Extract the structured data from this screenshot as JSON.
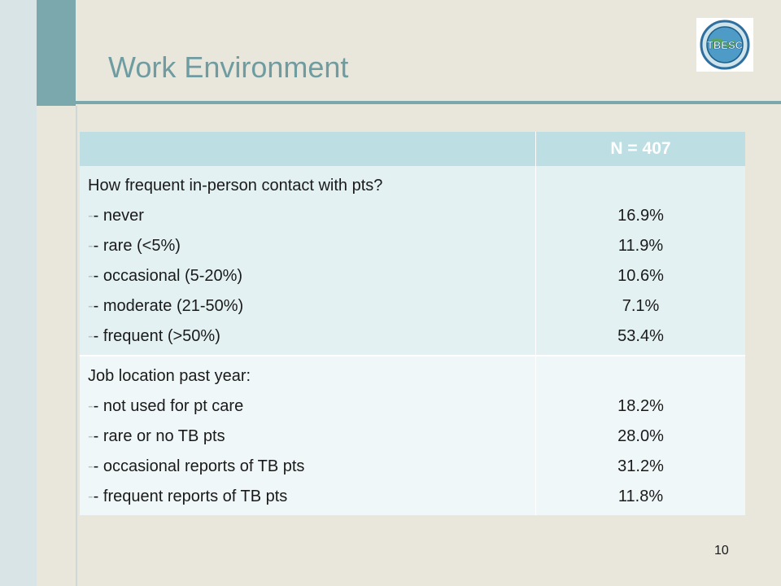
{
  "slide": {
    "title": "Work Environment",
    "page_number": "10"
  },
  "logo": {
    "text": "TBESC",
    "icon": "globe-seal-icon"
  },
  "colors": {
    "accent": "#7aa8ad",
    "header_bg": "#bddfe3",
    "row1_bg": "#e3f1f3",
    "row2_bg": "#f0f7f8",
    "background": "#e9e6dc"
  },
  "table": {
    "header": "N = 407",
    "sections": [
      {
        "question": "How frequent in-person contact with pts?",
        "items": [
          {
            "label": "- never",
            "value": "16.9%"
          },
          {
            "label": "- rare (<5%)",
            "value": "11.9%"
          },
          {
            "label": "- occasional (5-20%)",
            "value": "10.6%"
          },
          {
            "label": "- moderate (21-50%)",
            "value": "7.1%"
          },
          {
            "label": "- frequent (>50%)",
            "value": "53.4%"
          }
        ]
      },
      {
        "question": "Job location past year:",
        "items": [
          {
            "label": "- not used for pt care",
            "value": "18.2%"
          },
          {
            "label": "- rare or no TB pts",
            "value": "28.0%"
          },
          {
            "label": "- occasional reports of TB pts",
            "value": "31.2%"
          },
          {
            "label": "- frequent reports of TB pts",
            "value": "11.8%"
          }
        ]
      }
    ]
  }
}
